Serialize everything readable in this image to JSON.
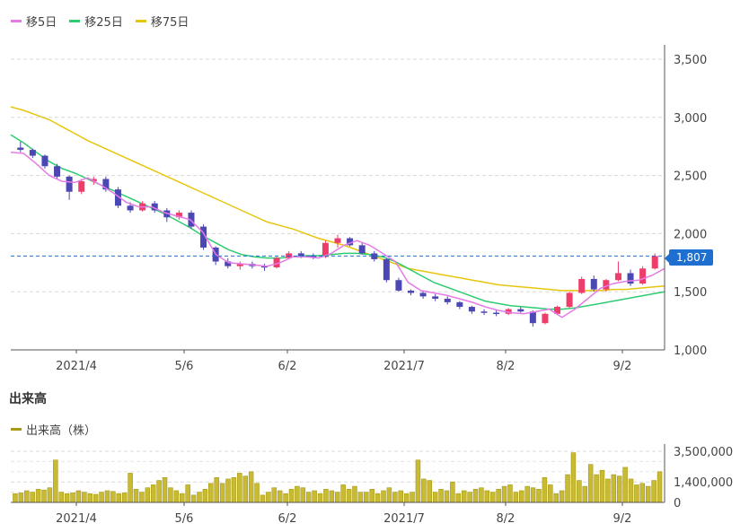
{
  "legend": {
    "items": [
      {
        "name": "ma5-legend",
        "label": "移5日",
        "color": "#e67be6"
      },
      {
        "name": "ma25-legend",
        "label": "移25日",
        "color": "#2ecc71"
      },
      {
        "name": "ma75-legend",
        "label": "移75日",
        "color": "#e8c50d"
      }
    ]
  },
  "volume_section": {
    "title": "出来高",
    "legend_label": "出来高（株）",
    "legend_color": "#a89a14"
  },
  "current_price_badge": "1,807",
  "colors": {
    "up": "#ee3d6a",
    "down": "#4b47b3",
    "volume": "#c8ba32",
    "volume_edge": "#a89a14",
    "ma5": "#e67be6",
    "ma25": "#2ecc71",
    "ma75": "#e8c50d",
    "grid": "#d8d8d8",
    "price_line": "#1f6fd1"
  },
  "chart_data": [
    {
      "type": "candlestick",
      "name": "price",
      "x_labels": [
        "2021/4",
        "5/6",
        "6/2",
        "2021/7",
        "8/2",
        "9/2"
      ],
      "y_ticks": [
        "1,000",
        "1,500",
        "2,000",
        "2,500",
        "3,000",
        "3,500"
      ],
      "ylim": [
        1000,
        3500
      ],
      "current_price": 1807,
      "ma5": [
        2700,
        2690,
        2600,
        2500,
        2450,
        2440,
        2480,
        2420,
        2350,
        2270,
        2230,
        2230,
        2180,
        2150,
        2120,
        2010,
        1820,
        1750,
        1740,
        1730,
        1720,
        1750,
        1800,
        1800,
        1790,
        1830,
        1900,
        1940,
        1900,
        1830,
        1760,
        1580,
        1510,
        1490,
        1470,
        1440,
        1410,
        1370,
        1340,
        1320,
        1310,
        1330,
        1350,
        1280,
        1350,
        1440,
        1530,
        1570,
        1590,
        1600,
        1640,
        1700
      ],
      "ma25": [
        2850,
        2780,
        2700,
        2620,
        2560,
        2520,
        2470,
        2420,
        2370,
        2320,
        2270,
        2220,
        2170,
        2110,
        2050,
        1980,
        1920,
        1860,
        1820,
        1800,
        1790,
        1790,
        1800,
        1810,
        1810,
        1820,
        1830,
        1830,
        1820,
        1800,
        1760,
        1700,
        1640,
        1580,
        1540,
        1500,
        1460,
        1420,
        1400,
        1380,
        1370,
        1360,
        1350,
        1350,
        1360,
        1380,
        1400,
        1420,
        1440,
        1460,
        1480,
        1500
      ],
      "ma75": [
        3090,
        3060,
        3020,
        2980,
        2920,
        2860,
        2800,
        2750,
        2700,
        2650,
        2600,
        2550,
        2500,
        2450,
        2400,
        2350,
        2300,
        2250,
        2200,
        2150,
        2100,
        2070,
        2040,
        2000,
        1960,
        1930,
        1900,
        1860,
        1820,
        1780,
        1740,
        1700,
        1680,
        1660,
        1640,
        1620,
        1600,
        1580,
        1560,
        1550,
        1540,
        1530,
        1520,
        1510,
        1510,
        1510,
        1510,
        1520,
        1520,
        1530,
        1540,
        1550
      ],
      "ohlc": [
        [
          2740,
          2790,
          2700,
          2720
        ],
        [
          2720,
          2730,
          2650,
          2670
        ],
        [
          2670,
          2680,
          2560,
          2580
        ],
        [
          2580,
          2600,
          2470,
          2490
        ],
        [
          2490,
          2500,
          2290,
          2360
        ],
        [
          2360,
          2470,
          2340,
          2450
        ],
        [
          2450,
          2490,
          2420,
          2470
        ],
        [
          2470,
          2490,
          2360,
          2380
        ],
        [
          2380,
          2400,
          2220,
          2240
        ],
        [
          2240,
          2270,
          2180,
          2200
        ],
        [
          2200,
          2280,
          2190,
          2260
        ],
        [
          2260,
          2280,
          2180,
          2200
        ],
        [
          2200,
          2220,
          2100,
          2140
        ],
        [
          2140,
          2200,
          2120,
          2180
        ],
        [
          2180,
          2200,
          2040,
          2060
        ],
        [
          2060,
          2080,
          1860,
          1880
        ],
        [
          1880,
          1890,
          1730,
          1760
        ],
        [
          1760,
          1790,
          1700,
          1720
        ],
        [
          1720,
          1760,
          1690,
          1740
        ],
        [
          1740,
          1760,
          1700,
          1720
        ],
        [
          1720,
          1740,
          1680,
          1710
        ],
        [
          1710,
          1800,
          1700,
          1790
        ],
        [
          1790,
          1850,
          1780,
          1830
        ],
        [
          1830,
          1850,
          1790,
          1810
        ],
        [
          1810,
          1830,
          1780,
          1800
        ],
        [
          1800,
          1940,
          1790,
          1920
        ],
        [
          1920,
          1990,
          1880,
          1960
        ],
        [
          1960,
          1970,
          1890,
          1900
        ],
        [
          1900,
          1920,
          1820,
          1830
        ],
        [
          1830,
          1850,
          1760,
          1780
        ],
        [
          1780,
          1790,
          1580,
          1600
        ],
        [
          1600,
          1620,
          1500,
          1510
        ],
        [
          1510,
          1520,
          1470,
          1490
        ],
        [
          1490,
          1510,
          1440,
          1460
        ],
        [
          1460,
          1480,
          1420,
          1440
        ],
        [
          1440,
          1460,
          1390,
          1410
        ],
        [
          1410,
          1420,
          1350,
          1370
        ],
        [
          1370,
          1380,
          1310,
          1330
        ],
        [
          1330,
          1350,
          1300,
          1320
        ],
        [
          1320,
          1340,
          1290,
          1310
        ],
        [
          1310,
          1360,
          1300,
          1350
        ],
        [
          1350,
          1370,
          1320,
          1330
        ],
        [
          1330,
          1340,
          1200,
          1230
        ],
        [
          1230,
          1320,
          1220,
          1310
        ],
        [
          1310,
          1380,
          1300,
          1370
        ],
        [
          1370,
          1500,
          1360,
          1490
        ],
        [
          1490,
          1630,
          1480,
          1610
        ],
        [
          1610,
          1640,
          1500,
          1520
        ],
        [
          1520,
          1610,
          1500,
          1600
        ],
        [
          1600,
          1760,
          1590,
          1660
        ],
        [
          1660,
          1690,
          1550,
          1570
        ],
        [
          1570,
          1720,
          1560,
          1700
        ],
        [
          1700,
          1830,
          1690,
          1807
        ]
      ]
    },
    {
      "type": "bar",
      "name": "volume",
      "title": "出来高",
      "y_ticks": [
        "0",
        "1,400,000",
        "3,500,000"
      ],
      "ylim": [
        0,
        3500000
      ],
      "x_labels": [
        "2021/4",
        "5/6",
        "6/2",
        "2021/7",
        "8/2",
        "9/2"
      ],
      "values": [
        600000,
        650000,
        800000,
        700000,
        900000,
        850000,
        1000000,
        2900000,
        700000,
        600000,
        650000,
        800000,
        700000,
        600000,
        550000,
        700000,
        800000,
        750000,
        600000,
        650000,
        2000000,
        900000,
        700000,
        1000000,
        1200000,
        1500000,
        1700000,
        1000000,
        800000,
        600000,
        1200000,
        500000,
        700000,
        900000,
        1300000,
        1700000,
        1300000,
        1600000,
        1700000,
        2000000,
        1800000,
        2100000,
        1300000,
        500000,
        700000,
        1000000,
        800000,
        600000,
        900000,
        1100000,
        1000000,
        700000,
        800000,
        600000,
        900000,
        800000,
        700000,
        1200000,
        900000,
        1100000,
        700000,
        700000,
        900000,
        600000,
        800000,
        1000000,
        700000,
        800000,
        600000,
        700000,
        2900000,
        1600000,
        1500000,
        700000,
        900000,
        800000,
        1400000,
        600000,
        800000,
        700000,
        900000,
        1000000,
        800000,
        700000,
        900000,
        1100000,
        1200000,
        700000,
        800000,
        1100000,
        1000000,
        900000,
        1700000,
        1200000,
        600000,
        800000,
        1900000,
        3400000,
        1500000,
        1100000,
        2600000,
        1900000,
        2200000,
        1600000,
        1900000,
        1800000,
        2400000,
        1600000,
        1200000,
        1300000,
        1100000,
        1500000,
        2100000
      ]
    }
  ]
}
